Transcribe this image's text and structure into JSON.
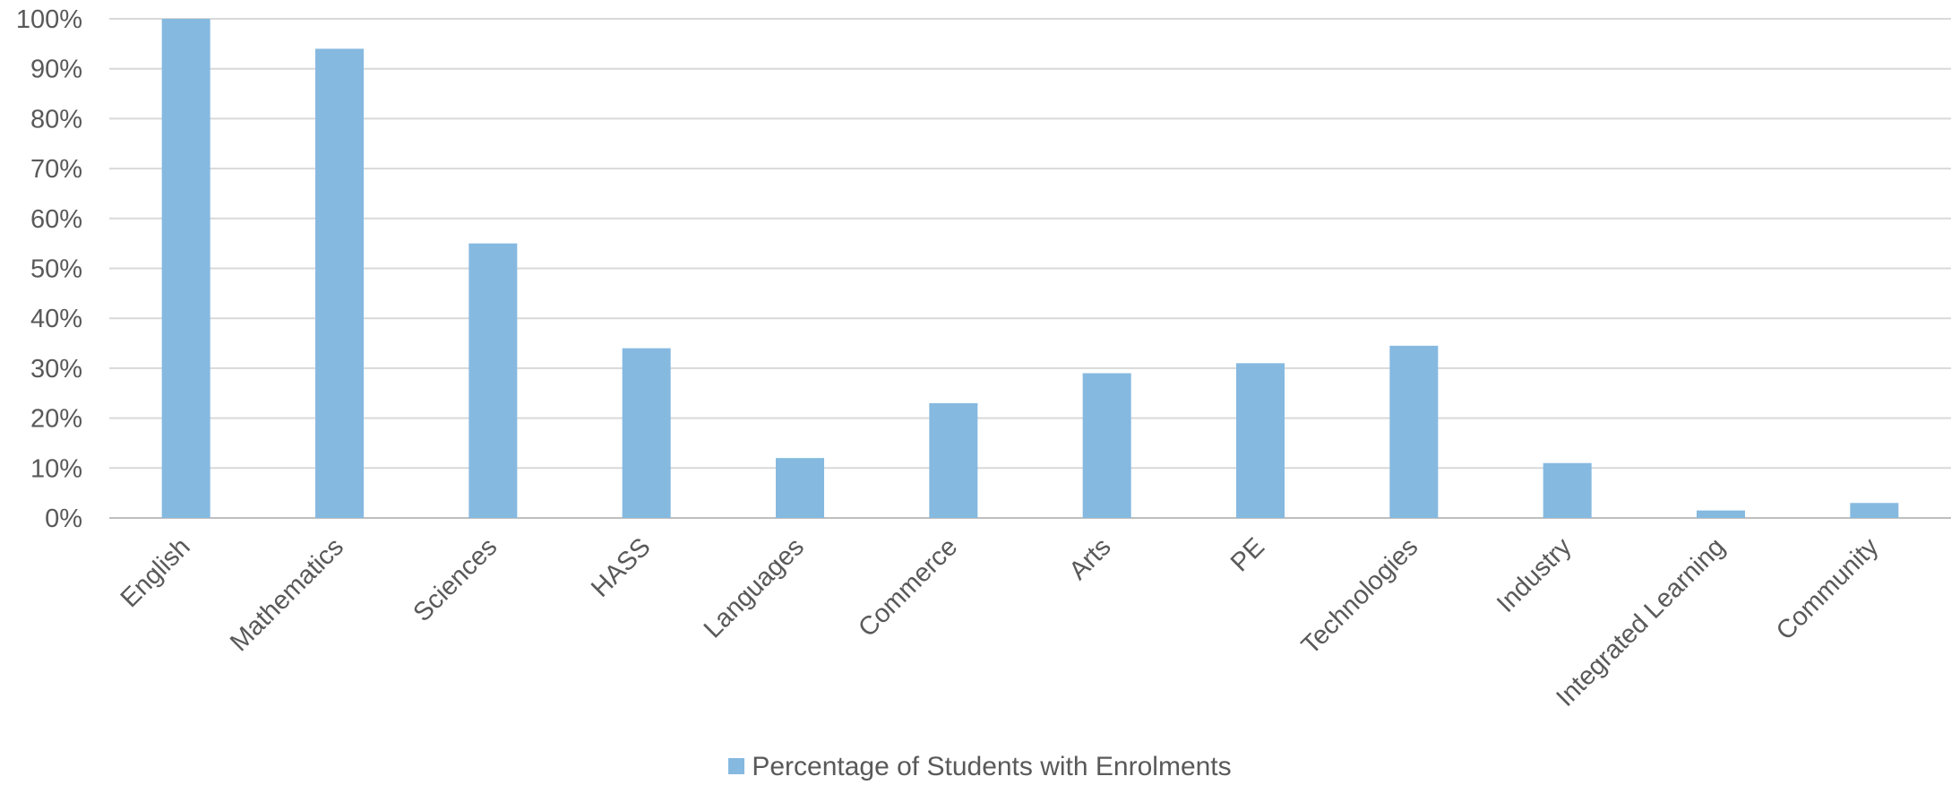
{
  "chart_data": {
    "type": "bar",
    "title": "",
    "xlabel": "",
    "ylabel": "",
    "ylim": [
      0,
      100
    ],
    "y_ticks": [
      "0%",
      "10%",
      "20%",
      "30%",
      "40%",
      "50%",
      "60%",
      "70%",
      "80%",
      "90%",
      "100%"
    ],
    "grid": true,
    "legend_position": "bottom",
    "bar_color": "#85b9e0",
    "categories": [
      "English",
      "Mathematics",
      "Sciences",
      "HASS",
      "Languages",
      "Commerce",
      "Arts",
      "PE",
      "Technologies",
      "Industry",
      "Integrated Learning",
      "Community"
    ],
    "series": [
      {
        "name": "Percentage of Students with Enrolments",
        "values": [
          100,
          94,
          55,
          34,
          12,
          23,
          29,
          31,
          34.5,
          11,
          1.5,
          3
        ]
      }
    ]
  }
}
